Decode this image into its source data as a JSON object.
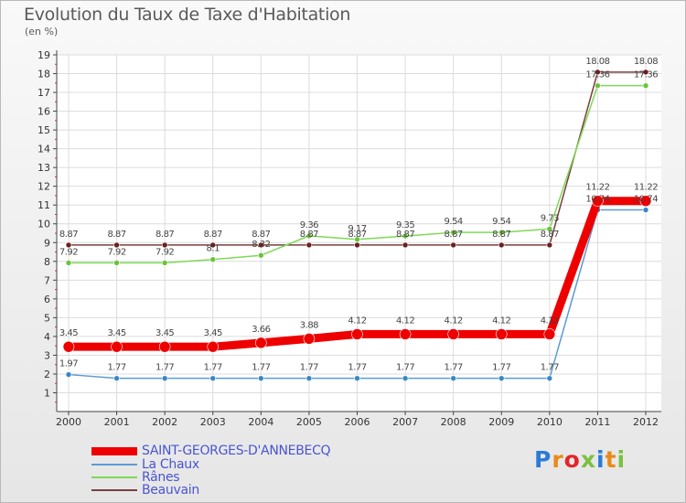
{
  "title": "Evolution du Taux de Taxe d'Habitation",
  "unit_label": "(en %)",
  "logo_text": "Proxiti",
  "chart_data": {
    "type": "line",
    "x": [
      "2000",
      "2001",
      "2002",
      "2003",
      "2004",
      "2005",
      "2006",
      "2007",
      "2008",
      "2009",
      "2010",
      "2011",
      "2012"
    ],
    "y_ticks": [
      "1",
      "2",
      "3",
      "4",
      "5",
      "6",
      "7",
      "8",
      "9",
      "10",
      "11",
      "12",
      "13",
      "14",
      "15",
      "16",
      "17",
      "18",
      "19"
    ],
    "ylim": [
      0,
      19
    ],
    "grid": true,
    "legend_position": "bottom-left",
    "series": [
      {
        "name": "SAINT-GEORGES-D'ANNEBECQ",
        "color": "#ee0000",
        "values": [
          3.45,
          3.45,
          3.45,
          3.45,
          3.66,
          3.88,
          4.12,
          4.12,
          4.12,
          4.12,
          4.12,
          11.22,
          11.22
        ],
        "labels": [
          "3.45",
          "3.45",
          "3.45",
          "3.45",
          "3.66",
          "3.88",
          "4.12",
          "4.12",
          "4.12",
          "4.12",
          "4.12",
          "11.22",
          "11.22"
        ]
      },
      {
        "name": "La Chaux",
        "color": "#5b9bd5",
        "values": [
          1.97,
          1.77,
          1.77,
          1.77,
          1.77,
          1.77,
          1.77,
          1.77,
          1.77,
          1.77,
          1.77,
          10.74,
          10.74
        ],
        "labels": [
          "1.97",
          "1.77",
          "1.77",
          "1.77",
          "1.77",
          "1.77",
          "1.77",
          "1.77",
          "1.77",
          "1.77",
          "1.77",
          "10.74",
          "10.74"
        ]
      },
      {
        "name": "Rânes",
        "color": "#7ed957",
        "values": [
          7.92,
          7.92,
          7.92,
          8.1,
          8.32,
          9.36,
          9.17,
          9.35,
          9.54,
          9.54,
          9.73,
          17.36,
          17.36
        ],
        "labels": [
          "7.92",
          "7.92",
          "7.92",
          "8.1",
          "8.32",
          "9.36",
          "9.17",
          "9.35",
          "9.54",
          "9.54",
          "9.73",
          "17.36",
          "17.36"
        ]
      },
      {
        "name": "Beauvain",
        "color": "#7a3e3e",
        "values": [
          8.87,
          8.87,
          8.87,
          8.87,
          8.87,
          8.87,
          8.87,
          8.87,
          8.87,
          8.87,
          8.87,
          18.08,
          18.08
        ],
        "labels": [
          "8.87",
          "8.87",
          "8.87",
          "8.87",
          "8.87",
          "8.87",
          "8.87",
          "8.87",
          "8.87",
          "8.87",
          "8.87",
          "18.08",
          "18.08"
        ]
      }
    ]
  }
}
